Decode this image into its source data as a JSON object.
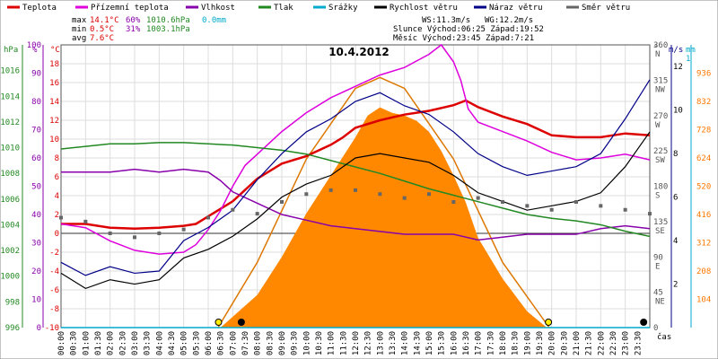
{
  "chart_data": {
    "type": "line",
    "title": "10.4.2012",
    "legend": {
      "placement": "top",
      "items": [
        {
          "label": "Teplota",
          "color": "#dd0000"
        },
        {
          "label": "Přízemní teplota",
          "color": "#dd00dd"
        },
        {
          "label": "Vlhkost",
          "color": "#8800aa"
        },
        {
          "label": "Tlak",
          "color": "#228822"
        },
        {
          "label": "Srážky",
          "color": "#00aacc"
        },
        {
          "label": "Rychlost větru",
          "color": "#000000"
        },
        {
          "label": "Náraz větru",
          "color": "#000088"
        },
        {
          "label": "Směr větru",
          "color": "#666666"
        }
      ]
    },
    "stats": {
      "rows": [
        {
          "label": "max",
          "temp": "14.1°C",
          "hum": "60%",
          "press": "1010.6hPa",
          "rain": "0.0mm"
        },
        {
          "label": "min",
          "temp": "0.5°C",
          "hum": "31%",
          "press": "1003.1hPa",
          "rain": ""
        },
        {
          "label": "avg",
          "temp": "7.6°C",
          "hum": "",
          "press": "",
          "rain": ""
        }
      ],
      "wind": "WS:11.3m/s",
      "gust": "WG:12.2m/s",
      "sun": "Slunce Východ:06:25  Západ:19:52",
      "moon": "Měsíc  Východ:23:45  Západ:7:21"
    },
    "axes": {
      "hpa": {
        "label": "hPa",
        "ticks": [
          "1016",
          "1014",
          "1012",
          "1010",
          "1008",
          "1006",
          "1004",
          "1002",
          "1000",
          "998",
          "996"
        ],
        "ylim": [
          996,
          1018
        ]
      },
      "pct": {
        "label": "%",
        "ticks": [
          "100",
          "90",
          "80",
          "70",
          "60",
          "50",
          "40",
          "30",
          "20",
          "10",
          "0"
        ],
        "ylim": [
          0,
          100
        ]
      },
      "degc": {
        "label": "°C",
        "ticks": [
          "18",
          "16",
          "14",
          "12",
          "10",
          "8",
          "6",
          "4",
          "2",
          "0",
          "-2",
          "-4",
          "-6",
          "-8",
          "-10"
        ],
        "ylim": [
          -10,
          20
        ]
      },
      "dir": {
        "label": "°",
        "ticks": [
          {
            "v": "360",
            "c": "N"
          },
          {
            "v": "315",
            "c": "NW"
          },
          {
            "v": "270",
            "c": "W"
          },
          {
            "v": "225",
            "c": "SW"
          },
          {
            "v": "180",
            "c": "S"
          },
          {
            "v": "135",
            "c": "SE"
          },
          {
            "v": "90",
            "c": "E"
          },
          {
            "v": "45",
            "c": "NE"
          },
          {
            "v": "0",
            "c": ""
          }
        ],
        "ylim": [
          0,
          360
        ]
      },
      "ms": {
        "label": "m/s",
        "ticks": [
          "12",
          "10",
          "8",
          "6",
          "4",
          "2"
        ],
        "ylim": [
          0,
          13
        ]
      },
      "mm": {
        "label": "mm",
        "top": "1"
      },
      "wm2": {
        "ticks": [
          "936",
          "832",
          "728",
          "624",
          "520",
          "416",
          "312",
          "208",
          "104"
        ],
        "ylim": [
          0,
          1040
        ]
      },
      "x": {
        "label": "čas",
        "ticks": [
          "00:00",
          "00:30",
          "01:00",
          "01:30",
          "02:00",
          "02:30",
          "03:00",
          "03:30",
          "04:00",
          "04:30",
          "05:00",
          "05:30",
          "06:00",
          "06:30",
          "07:00",
          "07:30",
          "08:00",
          "08:30",
          "09:00",
          "09:30",
          "10:00",
          "10:30",
          "11:00",
          "11:30",
          "12:00",
          "12:30",
          "13:00",
          "13:30",
          "14:00",
          "14:30",
          "15:00",
          "15:30",
          "16:00",
          "16:30",
          "17:00",
          "17:30",
          "18:00",
          "18:30",
          "19:00",
          "19:30",
          "20:00",
          "20:30",
          "21:00",
          "21:30",
          "22:00",
          "22:30",
          "23:00",
          "23:30"
        ],
        "xlim": [
          0,
          24
        ]
      }
    },
    "series": [
      {
        "name": "Teplota",
        "unit": "°C",
        "color": "#dd0000",
        "points": [
          [
            0,
            1.0
          ],
          [
            1,
            1.0
          ],
          [
            2,
            0.6
          ],
          [
            3,
            0.5
          ],
          [
            4,
            0.6
          ],
          [
            5,
            0.8
          ],
          [
            5.5,
            1.0
          ],
          [
            6,
            1.8
          ],
          [
            6.5,
            2.6
          ],
          [
            7,
            3.4
          ],
          [
            7.5,
            4.6
          ],
          [
            8,
            5.8
          ],
          [
            8.5,
            6.6
          ],
          [
            9,
            7.4
          ],
          [
            10,
            8.2
          ],
          [
            11,
            9.4
          ],
          [
            11.5,
            10.2
          ],
          [
            12,
            11.2
          ],
          [
            13,
            12.0
          ],
          [
            14,
            12.6
          ],
          [
            15,
            13.0
          ],
          [
            16,
            13.6
          ],
          [
            16.5,
            14.1
          ],
          [
            17,
            13.4
          ],
          [
            18,
            12.4
          ],
          [
            19,
            11.6
          ],
          [
            20,
            10.4
          ],
          [
            21,
            10.2
          ],
          [
            22,
            10.2
          ],
          [
            23,
            10.6
          ],
          [
            24,
            10.4
          ]
        ]
      },
      {
        "name": "Přízemní teplota",
        "unit": "°C",
        "color": "#dd00dd",
        "points": [
          [
            0,
            1.0
          ],
          [
            1,
            0.6
          ],
          [
            2,
            -0.8
          ],
          [
            3,
            -1.8
          ],
          [
            4,
            -2.2
          ],
          [
            5,
            -2.0
          ],
          [
            5.5,
            -1.2
          ],
          [
            6,
            0.4
          ],
          [
            6.5,
            2.4
          ],
          [
            7,
            5.0
          ],
          [
            7.5,
            7.2
          ],
          [
            8,
            8.4
          ],
          [
            9,
            10.8
          ],
          [
            10,
            12.8
          ],
          [
            11,
            14.4
          ],
          [
            12,
            15.6
          ],
          [
            13,
            16.8
          ],
          [
            14,
            17.6
          ],
          [
            15,
            19.0
          ],
          [
            15.5,
            20.0
          ],
          [
            16,
            18.2
          ],
          [
            16.3,
            16.2
          ],
          [
            16.6,
            13.2
          ],
          [
            17,
            11.8
          ],
          [
            18,
            10.8
          ],
          [
            19,
            9.8
          ],
          [
            20,
            8.6
          ],
          [
            21,
            7.8
          ],
          [
            22,
            8.0
          ],
          [
            23,
            8.4
          ],
          [
            24,
            7.8
          ]
        ]
      },
      {
        "name": "Vlhkost",
        "unit": "%",
        "color": "#8800aa",
        "points": [
          [
            0,
            55
          ],
          [
            1,
            55
          ],
          [
            2,
            55
          ],
          [
            3,
            56
          ],
          [
            4,
            55
          ],
          [
            5,
            56
          ],
          [
            6,
            55
          ],
          [
            6.5,
            52
          ],
          [
            7,
            48
          ],
          [
            8,
            44
          ],
          [
            9,
            40
          ],
          [
            10,
            38
          ],
          [
            11,
            36
          ],
          [
            12,
            35
          ],
          [
            13,
            34
          ],
          [
            14,
            33
          ],
          [
            15,
            33
          ],
          [
            16,
            33
          ],
          [
            17,
            31
          ],
          [
            18,
            32
          ],
          [
            19,
            33
          ],
          [
            20,
            33
          ],
          [
            21,
            33
          ],
          [
            22,
            35
          ],
          [
            23,
            36
          ],
          [
            24,
            35
          ]
        ]
      },
      {
        "name": "Tlak",
        "unit": "hPa",
        "color": "#228822",
        "points": [
          [
            0,
            1009.9
          ],
          [
            1,
            1010.1
          ],
          [
            2,
            1010.3
          ],
          [
            3,
            1010.3
          ],
          [
            4,
            1010.4
          ],
          [
            5,
            1010.4
          ],
          [
            6,
            1010.3
          ],
          [
            7,
            1010.2
          ],
          [
            8,
            1010.0
          ],
          [
            9,
            1009.8
          ],
          [
            10,
            1009.5
          ],
          [
            11,
            1009.0
          ],
          [
            12,
            1008.5
          ],
          [
            13,
            1008.0
          ],
          [
            14,
            1007.4
          ],
          [
            15,
            1006.8
          ],
          [
            16,
            1006.3
          ],
          [
            17,
            1005.8
          ],
          [
            18,
            1005.3
          ],
          [
            19,
            1004.8
          ],
          [
            20,
            1004.5
          ],
          [
            21,
            1004.3
          ],
          [
            22,
            1004.0
          ],
          [
            23,
            1003.5
          ],
          [
            24,
            1003.1
          ]
        ]
      },
      {
        "name": "Rychlost větru",
        "unit": "m/s",
        "color": "#000000",
        "points": [
          [
            0,
            2.5
          ],
          [
            1,
            1.8
          ],
          [
            2,
            2.2
          ],
          [
            3,
            2.0
          ],
          [
            4,
            2.2
          ],
          [
            5,
            3.2
          ],
          [
            6,
            3.6
          ],
          [
            7,
            4.2
          ],
          [
            8,
            5.0
          ],
          [
            9,
            6.0
          ],
          [
            10,
            6.6
          ],
          [
            11,
            7.0
          ],
          [
            12,
            7.8
          ],
          [
            13,
            8.0
          ],
          [
            14,
            7.8
          ],
          [
            15,
            7.6
          ],
          [
            16,
            7.0
          ],
          [
            17,
            6.2
          ],
          [
            18,
            5.8
          ],
          [
            19,
            5.4
          ],
          [
            20,
            5.6
          ],
          [
            21,
            5.8
          ],
          [
            22,
            6.2
          ],
          [
            23,
            7.4
          ],
          [
            24,
            9.0
          ]
        ]
      },
      {
        "name": "Náraz větru",
        "unit": "m/s",
        "color": "#000088",
        "points": [
          [
            0,
            3.0
          ],
          [
            1,
            2.4
          ],
          [
            2,
            2.8
          ],
          [
            3,
            2.5
          ],
          [
            4,
            2.6
          ],
          [
            5,
            4.0
          ],
          [
            6,
            4.6
          ],
          [
            7,
            5.4
          ],
          [
            8,
            6.8
          ],
          [
            9,
            8.0
          ],
          [
            10,
            9.0
          ],
          [
            11,
            9.6
          ],
          [
            12,
            10.4
          ],
          [
            13,
            10.8
          ],
          [
            14,
            10.2
          ],
          [
            15,
            9.8
          ],
          [
            16,
            9.0
          ],
          [
            17,
            8.0
          ],
          [
            18,
            7.4
          ],
          [
            19,
            7.0
          ],
          [
            20,
            7.2
          ],
          [
            21,
            7.4
          ],
          [
            22,
            8.0
          ],
          [
            23,
            9.6
          ],
          [
            24,
            11.4
          ]
        ]
      },
      {
        "name": "Směr větru",
        "unit": "°",
        "color": "#666666",
        "points": [
          [
            0,
            140
          ],
          [
            1,
            135
          ],
          [
            2,
            120
          ],
          [
            3,
            115
          ],
          [
            4,
            120
          ],
          [
            5,
            125
          ],
          [
            6,
            140
          ],
          [
            7,
            150
          ],
          [
            8,
            145
          ],
          [
            9,
            160
          ],
          [
            10,
            170
          ],
          [
            11,
            175
          ],
          [
            12,
            175
          ],
          [
            13,
            170
          ],
          [
            14,
            165
          ],
          [
            15,
            170
          ],
          [
            16,
            160
          ],
          [
            17,
            165
          ],
          [
            18,
            160
          ],
          [
            19,
            155
          ],
          [
            20,
            150
          ],
          [
            21,
            160
          ],
          [
            22,
            155
          ],
          [
            23,
            150
          ],
          [
            24,
            145
          ]
        ]
      },
      {
        "name": "Srážky",
        "unit": "mm",
        "color": "#00aacc",
        "points": [
          [
            0,
            0
          ],
          [
            24,
            0
          ]
        ]
      }
    ],
    "solar": {
      "color": "#ff8800",
      "unit": "W/m²",
      "points": [
        [
          6.5,
          0
        ],
        [
          7,
          40
        ],
        [
          8,
          120
        ],
        [
          9,
          260
        ],
        [
          10,
          420
        ],
        [
          11,
          560
        ],
        [
          12,
          700
        ],
        [
          12.5,
          780
        ],
        [
          13,
          810
        ],
        [
          13.5,
          790
        ],
        [
          14,
          780
        ],
        [
          14.5,
          760
        ],
        [
          15,
          720
        ],
        [
          15.5,
          650
        ],
        [
          16,
          560
        ],
        [
          16.5,
          460
        ],
        [
          17,
          330
        ],
        [
          18,
          180
        ],
        [
          19,
          60
        ],
        [
          19.8,
          0
        ]
      ]
    },
    "solar_theoretical": {
      "color": "#dd7700",
      "points": [
        [
          6.4,
          0
        ],
        [
          8,
          240
        ],
        [
          10,
          620
        ],
        [
          12,
          880
        ],
        [
          13,
          920
        ],
        [
          14,
          880
        ],
        [
          16,
          620
        ],
        [
          18,
          240
        ],
        [
          19.9,
          0
        ]
      ]
    },
    "markers": [
      {
        "name": "sunrise",
        "x": 6.42,
        "color": "#ffee00"
      },
      {
        "name": "sunset",
        "x": 19.87,
        "color": "#ffee00"
      },
      {
        "name": "moonset",
        "x": 7.35,
        "color": "#000000"
      },
      {
        "name": "moonrise",
        "x": 23.75,
        "color": "#000000"
      }
    ],
    "grid": true
  }
}
